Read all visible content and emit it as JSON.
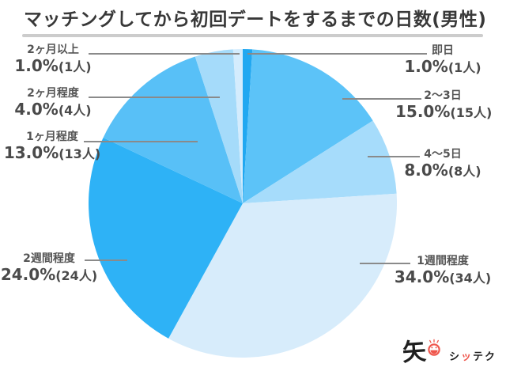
{
  "title": "マッチングしてから初回デートをするまでの日数(男性)",
  "colors": {
    "title_text": "#383838",
    "divider": "#cccccc",
    "leader_line": "#8a8a8a",
    "label_text": "#555555",
    "value_text": "#4a4a4a",
    "brand_black": "#1f1f1f",
    "brand_red": "#ef564c"
  },
  "logo": {
    "mark": "矢",
    "smiley_icon": "laughing-face-icon",
    "name_prefix": "シ",
    "name_accent": "ッ",
    "name_suffix": "テク"
  },
  "chart_data": {
    "type": "pie",
    "title": "マッチングしてから初回デートをするまでの日数(男性)",
    "direction": "clockwise",
    "start_angle": "12-oclock",
    "total_responses": 100,
    "legend_position": "outside-leader-lines",
    "slices": [
      {
        "label": "即日",
        "value_pct": 1.0,
        "count": 1,
        "pct_text": "1.0%",
        "count_text": "(1人)",
        "color": "#21a8f1"
      },
      {
        "label": "2〜3日",
        "value_pct": 15.0,
        "count": 15,
        "pct_text": "15.0%",
        "count_text": "(15人)",
        "color": "#5cc3f8"
      },
      {
        "label": "4〜5日",
        "value_pct": 8.0,
        "count": 8,
        "pct_text": "8.0%",
        "count_text": "(8人)",
        "color": "#a6dcfb"
      },
      {
        "label": "1週間程度",
        "value_pct": 34.0,
        "count": 34,
        "pct_text": "34.0%",
        "count_text": "(34人)",
        "color": "#d7ecfb"
      },
      {
        "label": "2週間程度",
        "value_pct": 24.0,
        "count": 24,
        "pct_text": "24.0%",
        "count_text": "(24人)",
        "color": "#2eb2f6"
      },
      {
        "label": "1ヶ月程度",
        "value_pct": 13.0,
        "count": 13,
        "pct_text": "13.0%",
        "count_text": "(13人)",
        "color": "#58c0f7"
      },
      {
        "label": "2ヶ月程度",
        "value_pct": 4.0,
        "count": 4,
        "pct_text": "4.0%",
        "count_text": "(4人)",
        "color": "#a5dbfa"
      },
      {
        "label": "2ヶ月以上",
        "value_pct": 1.0,
        "count": 1,
        "pct_text": "1.0%",
        "count_text": "(1人)",
        "color": "#d4ecfd"
      }
    ]
  }
}
